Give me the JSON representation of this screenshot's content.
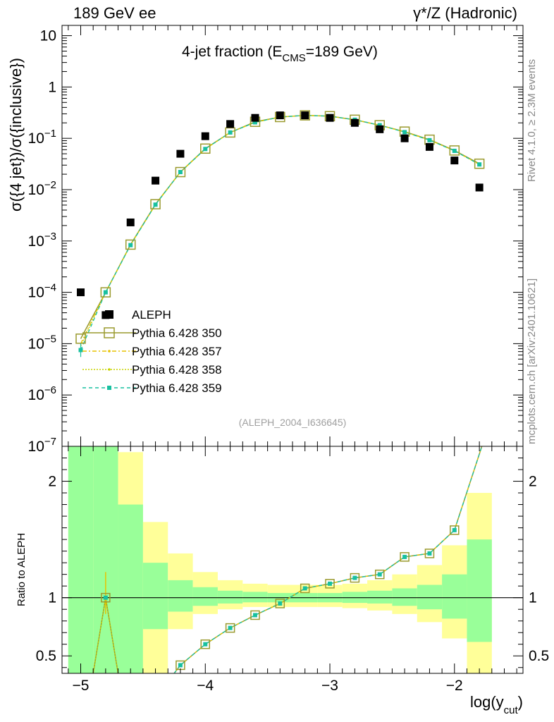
{
  "header": {
    "left": "189 GeV ee",
    "right": "γ*/Z (Hadronic)"
  },
  "side_labels": {
    "rivet": "Rivet 4.1.0, ≥ 2.3M events",
    "mcplots": "mcplots.cern.ch [arXiv:2401.10621]"
  },
  "chart_data": {
    "type": "scatter",
    "title_main": "4-jet fraction (E",
    "title_sub": "CMS",
    "title_tail": "=189 GeV)",
    "watermark": "(ALEPH_2004_I636645)",
    "ylabel": "σ({4 jet})/σ({inclusive})",
    "ratio_ylabel": "Ratio to ALEPH",
    "xlabel_main": "log(y",
    "xlabel_sub": "cut",
    "xlabel_tail": ")",
    "xlim": [
      -5.15,
      -1.45
    ],
    "ylim_log10": [
      -7,
      1.2
    ],
    "ratio_ylim": [
      0.35,
      2.3
    ],
    "x_ticks": [
      {
        "v": -5,
        "label": "−5"
      },
      {
        "v": -4,
        "label": "−4"
      },
      {
        "v": -3,
        "label": "−3"
      },
      {
        "v": -2,
        "label": "−2"
      }
    ],
    "y_ticks": [
      {
        "e": 1,
        "base": "10",
        "exp": ""
      },
      {
        "e": 0,
        "base": "1",
        "exp": ""
      },
      {
        "e": -1,
        "base": "10",
        "exp": "−1"
      },
      {
        "e": -2,
        "base": "10",
        "exp": "−2"
      },
      {
        "e": -3,
        "base": "10",
        "exp": "−3"
      },
      {
        "e": -4,
        "base": "10",
        "exp": "−4"
      },
      {
        "e": -5,
        "base": "10",
        "exp": "−5"
      },
      {
        "e": -6,
        "base": "10",
        "exp": "−6"
      },
      {
        "e": -7,
        "base": "10",
        "exp": "−7"
      }
    ],
    "ratio_ticks": [
      {
        "v": 0.5,
        "label": "0.5"
      },
      {
        "v": 1,
        "label": "1"
      },
      {
        "v": 2,
        "label": "2"
      }
    ],
    "colors": {
      "data": "#000000",
      "p350": "#9a9a2e",
      "p357": "#e8c200",
      "p358": "#c8d400",
      "p359": "#18c0a0",
      "band_inner": "#99ff99",
      "band_outer": "#ffff99"
    },
    "legend": [
      {
        "key": "data",
        "label": "ALEPH"
      },
      {
        "key": "p350",
        "label": "Pythia 6.428 350"
      },
      {
        "key": "p357",
        "label": "Pythia 6.428 357"
      },
      {
        "key": "p358",
        "label": "Pythia 6.428 358"
      },
      {
        "key": "p359",
        "label": "Pythia 6.428 359"
      }
    ],
    "x": [
      -5.0,
      -4.8,
      -4.6,
      -4.4,
      -4.2,
      -4.0,
      -3.8,
      -3.6,
      -3.4,
      -3.2,
      -3.0,
      -2.8,
      -2.6,
      -2.4,
      -2.2,
      -2.0,
      -1.8
    ],
    "aleph": [
      0.0001,
      3.6e-05,
      0.0023,
      0.015,
      0.05,
      0.11,
      0.19,
      0.25,
      0.28,
      0.28,
      0.25,
      0.2,
      0.15,
      0.1,
      0.068,
      0.037,
      0.011
    ],
    "mc_x": [
      -5.0,
      -4.8,
      -4.6,
      -4.4,
      -4.2,
      -4.0,
      -3.8,
      -3.6,
      -3.4,
      -3.2,
      -3.0,
      -2.8,
      -2.6,
      -2.4,
      -2.2,
      -2.0,
      -1.8
    ],
    "series": [
      {
        "name": "Pythia 6.428 350",
        "key": "p350",
        "values": [
          1.25e-05,
          0.0001,
          0.00085,
          0.0052,
          0.022,
          0.063,
          0.13,
          0.21,
          0.26,
          0.28,
          0.27,
          0.23,
          0.18,
          0.135,
          0.094,
          0.058,
          0.032
        ]
      },
      {
        "name": "Pythia 6.428 357",
        "key": "p357",
        "values": [
          1e-05,
          0.0001,
          0.00084,
          0.0051,
          0.022,
          0.062,
          0.13,
          0.205,
          0.26,
          0.28,
          0.27,
          0.23,
          0.18,
          0.133,
          0.093,
          0.057,
          0.031
        ]
      },
      {
        "name": "Pythia 6.428 358",
        "key": "p358",
        "values": [
          9e-06,
          0.0001,
          0.00084,
          0.0051,
          0.022,
          0.062,
          0.13,
          0.205,
          0.26,
          0.28,
          0.27,
          0.23,
          0.18,
          0.133,
          0.093,
          0.057,
          0.031
        ]
      },
      {
        "name": "Pythia 6.428 359",
        "key": "p359",
        "values": [
          7.5e-06,
          0.0001,
          0.00083,
          0.0051,
          0.022,
          0.062,
          0.13,
          0.205,
          0.26,
          0.28,
          0.27,
          0.23,
          0.18,
          0.132,
          0.092,
          0.057,
          0.031
        ]
      }
    ],
    "ratio_x": [
      -4.8,
      -4.2,
      -4.0,
      -3.8,
      -3.6,
      -3.4,
      -3.2,
      -3.0,
      -2.8,
      -2.6,
      -2.4,
      -2.2,
      -2.0
    ],
    "ratio_values": [
      1.0,
      0.42,
      0.6,
      0.74,
      0.85,
      0.95,
      1.08,
      1.12,
      1.17,
      1.2,
      1.35,
      1.38,
      1.58
    ],
    "ratio_edge": {
      "below_x": -4.25,
      "right_x": -1.78,
      "right_y": 2.3
    },
    "ratio_spike_x": [
      -4.9,
      -4.8,
      -4.7
    ],
    "bands": [
      {
        "x0": -5.1,
        "x1": -4.9,
        "yin_lo": 0.35,
        "yin_hi": 2.3,
        "yout_lo": 0.35,
        "yout_hi": 2.3
      },
      {
        "x0": -4.9,
        "x1": -4.7,
        "yin_lo": 0.35,
        "yin_hi": 2.3,
        "yout_lo": 0.35,
        "yout_hi": 2.3
      },
      {
        "x0": -4.7,
        "x1": -4.5,
        "yin_lo": 0.35,
        "yin_hi": 1.8,
        "yout_lo": 0.35,
        "yout_hi": 2.25
      },
      {
        "x0": -4.5,
        "x1": -4.3,
        "yin_lo": 0.73,
        "yin_hi": 1.3,
        "yout_lo": 0.35,
        "yout_hi": 1.65
      },
      {
        "x0": -4.3,
        "x1": -4.1,
        "yin_lo": 0.88,
        "yin_hi": 1.15,
        "yout_lo": 0.73,
        "yout_hi": 1.38
      },
      {
        "x0": -4.1,
        "x1": -3.9,
        "yin_lo": 0.93,
        "yin_hi": 1.09,
        "yout_lo": 0.86,
        "yout_hi": 1.22
      },
      {
        "x0": -3.9,
        "x1": -3.7,
        "yin_lo": 0.95,
        "yin_hi": 1.06,
        "yout_lo": 0.9,
        "yout_hi": 1.15
      },
      {
        "x0": -3.7,
        "x1": -3.5,
        "yin_lo": 0.96,
        "yin_hi": 1.05,
        "yout_lo": 0.92,
        "yout_hi": 1.12
      },
      {
        "x0": -3.5,
        "x1": -3.3,
        "yin_lo": 0.96,
        "yin_hi": 1.04,
        "yout_lo": 0.92,
        "yout_hi": 1.11
      },
      {
        "x0": -3.3,
        "x1": -3.1,
        "yin_lo": 0.96,
        "yin_hi": 1.04,
        "yout_lo": 0.92,
        "yout_hi": 1.11
      },
      {
        "x0": -3.1,
        "x1": -2.9,
        "yin_lo": 0.96,
        "yin_hi": 1.04,
        "yout_lo": 0.92,
        "yout_hi": 1.11
      },
      {
        "x0": -2.9,
        "x1": -2.7,
        "yin_lo": 0.955,
        "yin_hi": 1.05,
        "yout_lo": 0.91,
        "yout_hi": 1.12
      },
      {
        "x0": -2.7,
        "x1": -2.5,
        "yin_lo": 0.95,
        "yin_hi": 1.06,
        "yout_lo": 0.89,
        "yout_hi": 1.15
      },
      {
        "x0": -2.5,
        "x1": -2.3,
        "yin_lo": 0.93,
        "yin_hi": 1.08,
        "yout_lo": 0.86,
        "yout_hi": 1.2
      },
      {
        "x0": -2.3,
        "x1": -2.1,
        "yin_lo": 0.9,
        "yin_hi": 1.11,
        "yout_lo": 0.79,
        "yout_hi": 1.28
      },
      {
        "x0": -2.1,
        "x1": -1.9,
        "yin_lo": 0.82,
        "yin_hi": 1.2,
        "yout_lo": 0.65,
        "yout_hi": 1.45
      },
      {
        "x0": -1.9,
        "x1": -1.7,
        "yin_lo": 0.62,
        "yin_hi": 1.5,
        "yout_lo": 0.35,
        "yout_hi": 1.9
      }
    ]
  }
}
